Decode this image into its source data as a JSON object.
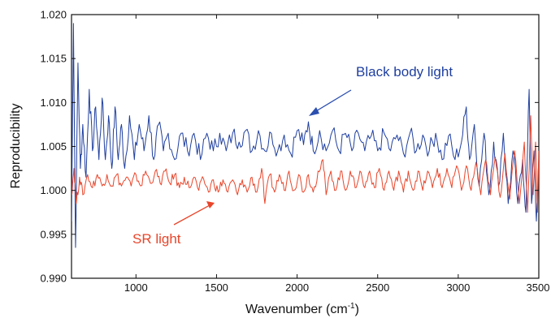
{
  "chart_data": {
    "type": "line",
    "title": "",
    "xlabel": "Wavenumber (cm",
    "xlabel_superscript": "-1",
    "xlabel_suffix": ")",
    "ylabel": "Reproducibility",
    "xlim": [
      600,
      3500
    ],
    "ylim": [
      0.99,
      1.02
    ],
    "x_ticks": [
      1000,
      1500,
      2000,
      2500,
      3000,
      3500
    ],
    "y_ticks": [
      "0.990",
      "0.995",
      "1.000",
      "1.005",
      "1.010",
      "1.015",
      "1.020"
    ],
    "grid": false,
    "legend": "none",
    "series": [
      {
        "name": "Black body light",
        "color": "#1f3f9f",
        "points": [
          [
            600,
            0.9965
          ],
          [
            612,
            1.019
          ],
          [
            625,
            0.9935
          ],
          [
            640,
            1.0145
          ],
          [
            655,
            1.0025
          ],
          [
            670,
            1.0075
          ],
          [
            690,
            1.0015
          ],
          [
            710,
            1.0115
          ],
          [
            730,
            1.0045
          ],
          [
            750,
            1.0095
          ],
          [
            770,
            1.0035
          ],
          [
            790,
            1.0105
          ],
          [
            810,
            1.0035
          ],
          [
            830,
            1.0085
          ],
          [
            850,
            1.0025
          ],
          [
            870,
            1.0095
          ],
          [
            890,
            1.0035
          ],
          [
            910,
            1.0075
          ],
          [
            930,
            1.0025
          ],
          [
            960,
            1.0085
          ],
          [
            990,
            1.0035
          ],
          [
            1020,
            1.0075
          ],
          [
            1050,
            1.0045
          ],
          [
            1080,
            1.0085
          ],
          [
            1110,
            1.0035
          ],
          [
            1140,
            1.0075
          ],
          [
            1170,
            1.0045
          ],
          [
            1200,
            1.0065
          ],
          [
            1240,
            1.0035
          ],
          [
            1280,
            1.0065
          ],
          [
            1320,
            1.0045
          ],
          [
            1360,
            1.0065
          ],
          [
            1400,
            1.0035
          ],
          [
            1440,
            1.0065
          ],
          [
            1480,
            1.0045
          ],
          [
            1520,
            1.0065
          ],
          [
            1560,
            1.0045
          ],
          [
            1600,
            1.0065
          ],
          [
            1640,
            1.0055
          ],
          [
            1680,
            1.0068
          ],
          [
            1720,
            1.0045
          ],
          [
            1760,
            1.0068
          ],
          [
            1800,
            1.0045
          ],
          [
            1840,
            1.0065
          ],
          [
            1880,
            1.0045
          ],
          [
            1920,
            1.0063
          ],
          [
            1960,
            1.0042
          ],
          [
            2000,
            1.0068
          ],
          [
            2040,
            1.0052
          ],
          [
            2070,
            1.0078
          ],
          [
            2100,
            1.0045
          ],
          [
            2140,
            1.0068
          ],
          [
            2180,
            1.0045
          ],
          [
            2220,
            1.0068
          ],
          [
            2260,
            1.0045
          ],
          [
            2300,
            1.0065
          ],
          [
            2340,
            1.0045
          ],
          [
            2380,
            1.0065
          ],
          [
            2420,
            1.0045
          ],
          [
            2460,
            1.0062
          ],
          [
            2500,
            1.0045
          ],
          [
            2540,
            1.0065
          ],
          [
            2580,
            1.0045
          ],
          [
            2620,
            1.0063
          ],
          [
            2660,
            1.0042
          ],
          [
            2700,
            1.0065
          ],
          [
            2740,
            1.0045
          ],
          [
            2780,
            1.0063
          ],
          [
            2820,
            1.0045
          ],
          [
            2860,
            1.0065
          ],
          [
            2900,
            1.0035
          ],
          [
            2940,
            1.0062
          ],
          [
            2980,
            1.0035
          ],
          [
            3020,
            1.0055
          ],
          [
            3050,
            1.0095
          ],
          [
            3070,
            1.0035
          ],
          [
            3100,
            1.0075
          ],
          [
            3130,
            1.0005
          ],
          [
            3160,
            1.0065
          ],
          [
            3190,
            0.9995
          ],
          [
            3220,
            1.0055
          ],
          [
            3250,
            1.0005
          ],
          [
            3280,
            1.0065
          ],
          [
            3310,
            0.9985
          ],
          [
            3340,
            1.0045
          ],
          [
            3370,
            0.9985
          ],
          [
            3400,
            1.0035
          ],
          [
            3420,
            0.9975
          ],
          [
            3440,
            1.0115
          ],
          [
            3455,
            0.9985
          ],
          [
            3470,
            1.0045
          ],
          [
            3485,
            0.9965
          ],
          [
            3500,
            1.0035
          ]
        ]
      },
      {
        "name": "SR light",
        "color": "#e8452a",
        "points": [
          [
            600,
            0.9995
          ],
          [
            615,
            1.0025
          ],
          [
            630,
            0.9985
          ],
          [
            650,
            1.0015
          ],
          [
            670,
            0.9995
          ],
          [
            700,
            1.0018
          ],
          [
            730,
            1.0003
          ],
          [
            760,
            1.0018
          ],
          [
            790,
            1.0005
          ],
          [
            820,
            1.0018
          ],
          [
            850,
            1.0005
          ],
          [
            880,
            1.0018
          ],
          [
            910,
            1.0005
          ],
          [
            940,
            1.0015
          ],
          [
            970,
            1.0005
          ],
          [
            1000,
            1.0018
          ],
          [
            1030,
            1.0005
          ],
          [
            1060,
            1.0022
          ],
          [
            1090,
            1.0008
          ],
          [
            1120,
            1.0022
          ],
          [
            1150,
            1.0008
          ],
          [
            1180,
            1.0022
          ],
          [
            1210,
            1.0008
          ],
          [
            1240,
            1.0018
          ],
          [
            1270,
            1.0003
          ],
          [
            1300,
            1.0015
          ],
          [
            1330,
            1.0003
          ],
          [
            1360,
            1.0015
          ],
          [
            1390,
            1.0
          ],
          [
            1420,
            1.0013
          ],
          [
            1450,
            0.9998
          ],
          [
            1480,
            1.0012
          ],
          [
            1510,
            0.9998
          ],
          [
            1540,
            1.0012
          ],
          [
            1570,
            0.9998
          ],
          [
            1600,
            1.0012
          ],
          [
            1630,
            0.9995
          ],
          [
            1660,
            1.0012
          ],
          [
            1690,
            0.9998
          ],
          [
            1720,
            1.0015
          ],
          [
            1750,
            0.9998
          ],
          [
            1780,
            1.0025
          ],
          [
            1800,
            0.9985
          ],
          [
            1830,
            1.0018
          ],
          [
            1860,
            0.9998
          ],
          [
            1890,
            1.0018
          ],
          [
            1920,
            1.0
          ],
          [
            1950,
            1.0022
          ],
          [
            1980,
            1.0
          ],
          [
            2010,
            1.0018
          ],
          [
            2040,
            0.9998
          ],
          [
            2070,
            1.0018
          ],
          [
            2100,
            0.9998
          ],
          [
            2130,
            1.0022
          ],
          [
            2160,
            1.0035
          ],
          [
            2180,
            0.9995
          ],
          [
            2210,
            1.0022
          ],
          [
            2240,
            1.0
          ],
          [
            2270,
            1.0022
          ],
          [
            2300,
            1.0
          ],
          [
            2330,
            1.0022
          ],
          [
            2360,
            1.0003
          ],
          [
            2390,
            1.0022
          ],
          [
            2420,
            1.0003
          ],
          [
            2450,
            1.0022
          ],
          [
            2480,
            1.0003
          ],
          [
            2510,
            1.0025
          ],
          [
            2540,
            1.0
          ],
          [
            2570,
            1.0022
          ],
          [
            2600,
            1.0
          ],
          [
            2630,
            1.0022
          ],
          [
            2660,
            0.9998
          ],
          [
            2690,
            1.0022
          ],
          [
            2720,
            1.0
          ],
          [
            2750,
            1.0022
          ],
          [
            2780,
            1.0
          ],
          [
            2810,
            1.0022
          ],
          [
            2840,
            1.0003
          ],
          [
            2870,
            1.0025
          ],
          [
            2900,
            1.0003
          ],
          [
            2930,
            1.0025
          ],
          [
            2960,
            1.0003
          ],
          [
            2990,
            1.0028
          ],
          [
            3020,
            1.0
          ],
          [
            3050,
            1.0028
          ],
          [
            3080,
            1.0
          ],
          [
            3110,
            1.0032
          ],
          [
            3140,
            0.9995
          ],
          [
            3170,
            1.0035
          ],
          [
            3200,
            0.9995
          ],
          [
            3230,
            1.0038
          ],
          [
            3260,
            0.9992
          ],
          [
            3290,
            1.0042
          ],
          [
            3320,
            0.999
          ],
          [
            3350,
            1.0045
          ],
          [
            3380,
            0.9985
          ],
          [
            3410,
            1.0055
          ],
          [
            3430,
            0.9975
          ],
          [
            3450,
            1.0085
          ],
          [
            3465,
            0.9995
          ],
          [
            3480,
            1.0055
          ],
          [
            3492,
            0.9975
          ],
          [
            3500,
            1.0045
          ]
        ]
      }
    ],
    "annotations": [
      {
        "text": "Black body light",
        "color": "#1f3f9f"
      },
      {
        "text": "SR light",
        "color": "#e8452a"
      }
    ]
  }
}
